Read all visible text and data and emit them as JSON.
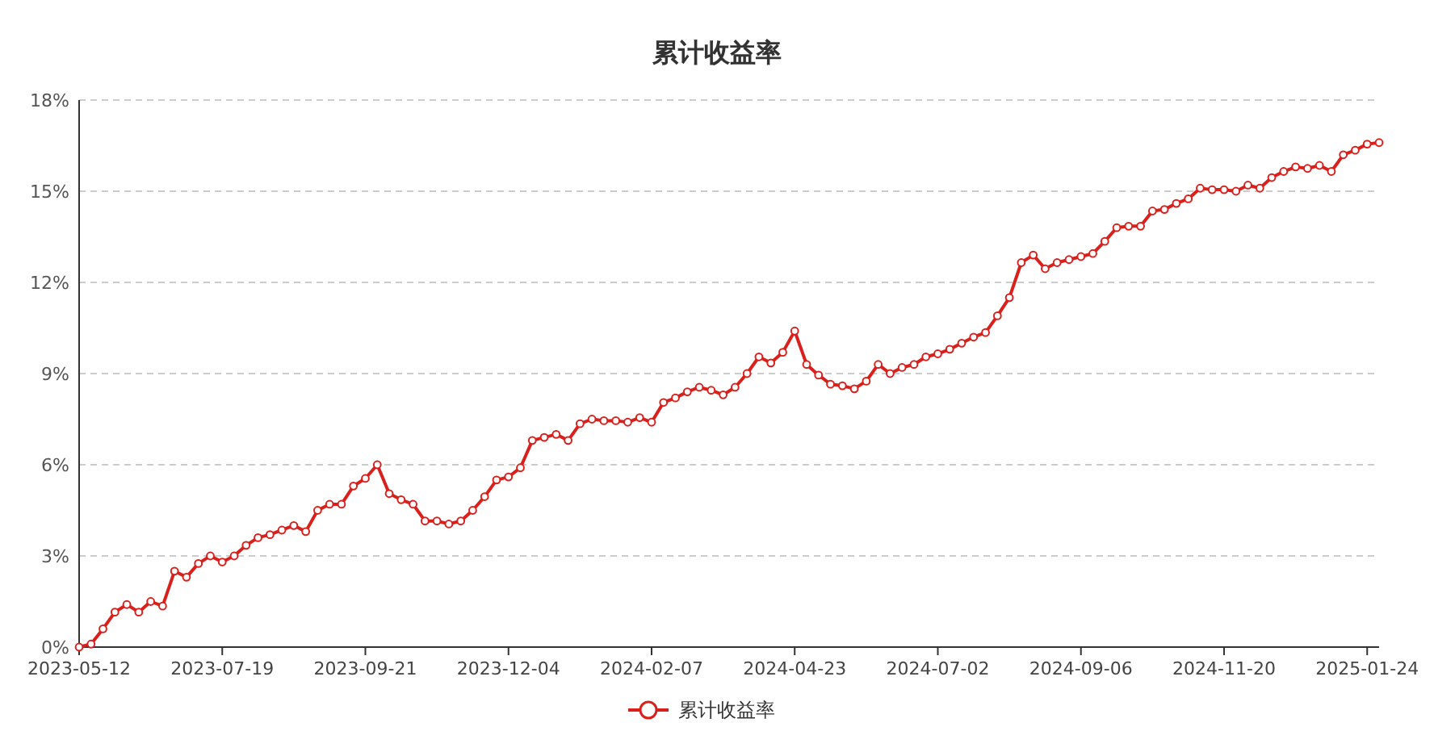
{
  "chart_data": {
    "type": "line",
    "title": "累计收益率",
    "categories": [
      "2023-05-12",
      null,
      null,
      null,
      null,
      null,
      null,
      null,
      null,
      null,
      null,
      null,
      "2023-07-19",
      null,
      null,
      null,
      null,
      null,
      null,
      null,
      null,
      null,
      null,
      null,
      "2023-09-21",
      null,
      null,
      null,
      null,
      null,
      null,
      null,
      null,
      null,
      null,
      null,
      "2023-12-04",
      null,
      null,
      null,
      null,
      null,
      null,
      null,
      null,
      null,
      null,
      null,
      "2024-02-07",
      null,
      null,
      null,
      null,
      null,
      null,
      null,
      null,
      null,
      null,
      null,
      "2024-04-23",
      null,
      null,
      null,
      null,
      null,
      null,
      null,
      null,
      null,
      null,
      null,
      "2024-07-02",
      null,
      null,
      null,
      null,
      null,
      null,
      null,
      null,
      null,
      null,
      null,
      "2024-09-06",
      null,
      null,
      null,
      null,
      null,
      null,
      null,
      null,
      null,
      null,
      null,
      "2024-11-20",
      null,
      null,
      null,
      null,
      null,
      null,
      null,
      null,
      null,
      null,
      null,
      "2025-01-24",
      null
    ],
    "series": [
      {
        "name": "累计收益率",
        "color": "#d9201c",
        "values": [
          0,
          0.1,
          0.6,
          1.15,
          1.4,
          1.15,
          1.5,
          1.35,
          2.5,
          2.3,
          2.75,
          3.0,
          2.8,
          3.0,
          3.35,
          3.6,
          3.7,
          3.85,
          4.0,
          3.8,
          4.5,
          4.7,
          4.7,
          5.3,
          5.55,
          6.0,
          5.05,
          4.85,
          4.7,
          4.15,
          4.15,
          4.05,
          4.15,
          4.5,
          4.95,
          5.5,
          5.6,
          5.9,
          6.8,
          6.9,
          7.0,
          6.8,
          7.35,
          7.5,
          7.45,
          7.45,
          7.4,
          7.55,
          7.4,
          8.05,
          8.2,
          8.4,
          8.55,
          8.45,
          8.3,
          8.55,
          9.0,
          9.55,
          9.35,
          9.7,
          10.4,
          9.3,
          8.95,
          8.65,
          8.6,
          8.5,
          8.75,
          9.3,
          9.0,
          9.2,
          9.3,
          9.55,
          9.65,
          9.8,
          10.0,
          10.2,
          10.35,
          10.9,
          11.5,
          12.65,
          12.9,
          12.45,
          12.65,
          12.75,
          12.85,
          12.95,
          13.35,
          13.8,
          13.85,
          13.85,
          14.35,
          14.4,
          14.6,
          14.75,
          15.1,
          15.05,
          15.05,
          15.0,
          15.2,
          15.1,
          15.45,
          15.65,
          15.8,
          15.75,
          15.85,
          15.65,
          16.2,
          16.35,
          16.55,
          16.6
        ]
      }
    ],
    "ylim": [
      0,
      18
    ],
    "yticks": [
      {
        "value": 0,
        "label": "0%"
      },
      {
        "value": 3,
        "label": "3%"
      },
      {
        "value": 6,
        "label": "6%"
      },
      {
        "value": 9,
        "label": "9%"
      },
      {
        "value": 12,
        "label": "12%"
      },
      {
        "value": 15,
        "label": "15%"
      },
      {
        "value": 18,
        "label": "18%"
      }
    ],
    "grid": "y",
    "legend": "bottom",
    "marker": "circle",
    "line_style": "solid"
  }
}
